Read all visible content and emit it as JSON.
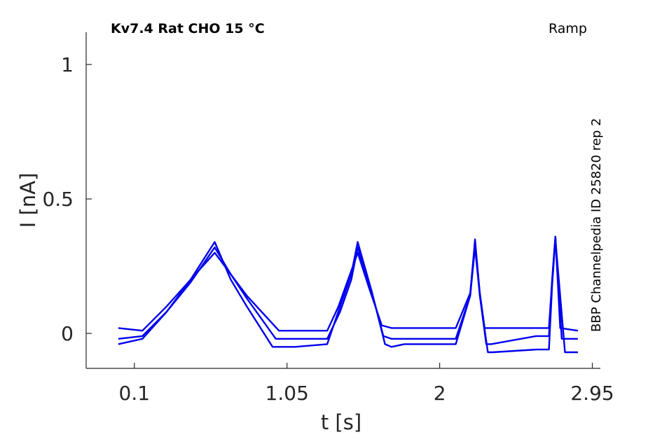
{
  "chart_data": {
    "type": "line",
    "title": "Kv7.4  Rat  CHO  15 °C",
    "protocol_label": "Ramp",
    "source_label": "BBP Channelpedia ID 25820 rep 2",
    "xlabel": "t [s]",
    "ylabel": "I [nA]",
    "xlim": [
      -0.2,
      3.0
    ],
    "ylim": [
      -0.13,
      1.12
    ],
    "xticks": [
      0.1,
      1.05,
      2,
      2.95
    ],
    "xtick_labels": [
      "0.1",
      "1.05",
      "2",
      "2.95"
    ],
    "yticks": [
      0,
      0.5,
      1
    ],
    "ytick_labels": [
      "0",
      "0.5",
      "1"
    ],
    "grid": false,
    "color": "#0000ee",
    "series": [
      {
        "x": [
          0.0,
          0.15,
          0.3,
          0.45,
          0.6,
          0.7,
          0.8,
          1.0,
          1.1,
          1.3,
          1.37,
          1.43,
          1.49,
          1.56,
          1.64,
          1.7,
          1.78,
          1.95,
          2.1,
          2.19,
          2.22,
          2.25,
          2.28,
          2.31,
          2.6,
          2.68,
          2.7,
          2.72,
          2.75,
          2.86
        ],
        "y": [
          0.02,
          0.01,
          0.1,
          0.2,
          0.3,
          0.22,
          0.14,
          0.01,
          0.01,
          0.01,
          0.1,
          0.2,
          0.3,
          0.17,
          0.03,
          0.02,
          0.02,
          0.02,
          0.02,
          0.15,
          0.34,
          0.15,
          0.02,
          0.02,
          0.02,
          0.02,
          0.2,
          0.36,
          0.02,
          0.01
        ]
      },
      {
        "x": [
          0.0,
          0.15,
          0.3,
          0.45,
          0.6,
          0.7,
          0.8,
          0.98,
          1.1,
          1.3,
          1.38,
          1.45,
          1.49,
          1.57,
          1.65,
          1.7,
          1.78,
          1.95,
          2.1,
          2.19,
          2.22,
          2.25,
          2.29,
          2.32,
          2.6,
          2.68,
          2.7,
          2.72,
          2.76,
          2.86
        ],
        "y": [
          -0.02,
          -0.01,
          0.08,
          0.19,
          0.32,
          0.22,
          0.13,
          -0.02,
          -0.02,
          -0.02,
          0.08,
          0.2,
          0.32,
          0.17,
          -0.01,
          -0.02,
          -0.02,
          -0.02,
          -0.02,
          0.14,
          0.32,
          0.14,
          -0.04,
          -0.04,
          -0.01,
          -0.01,
          0.2,
          0.36,
          -0.02,
          -0.02
        ]
      },
      {
        "x": [
          0.0,
          0.15,
          0.3,
          0.45,
          0.6,
          0.7,
          0.8,
          0.96,
          1.1,
          1.3,
          1.38,
          1.45,
          1.49,
          1.58,
          1.66,
          1.7,
          1.78,
          1.95,
          2.1,
          2.19,
          2.22,
          2.25,
          2.3,
          2.33,
          2.6,
          2.68,
          2.7,
          2.72,
          2.78,
          2.86
        ],
        "y": [
          -0.04,
          -0.02,
          0.08,
          0.2,
          0.34,
          0.2,
          0.1,
          -0.05,
          -0.05,
          -0.04,
          0.1,
          0.22,
          0.34,
          0.15,
          -0.04,
          -0.05,
          -0.04,
          -0.04,
          -0.04,
          0.14,
          0.35,
          0.14,
          -0.07,
          -0.07,
          -0.06,
          -0.06,
          0.18,
          0.35,
          -0.07,
          -0.07
        ]
      }
    ]
  }
}
